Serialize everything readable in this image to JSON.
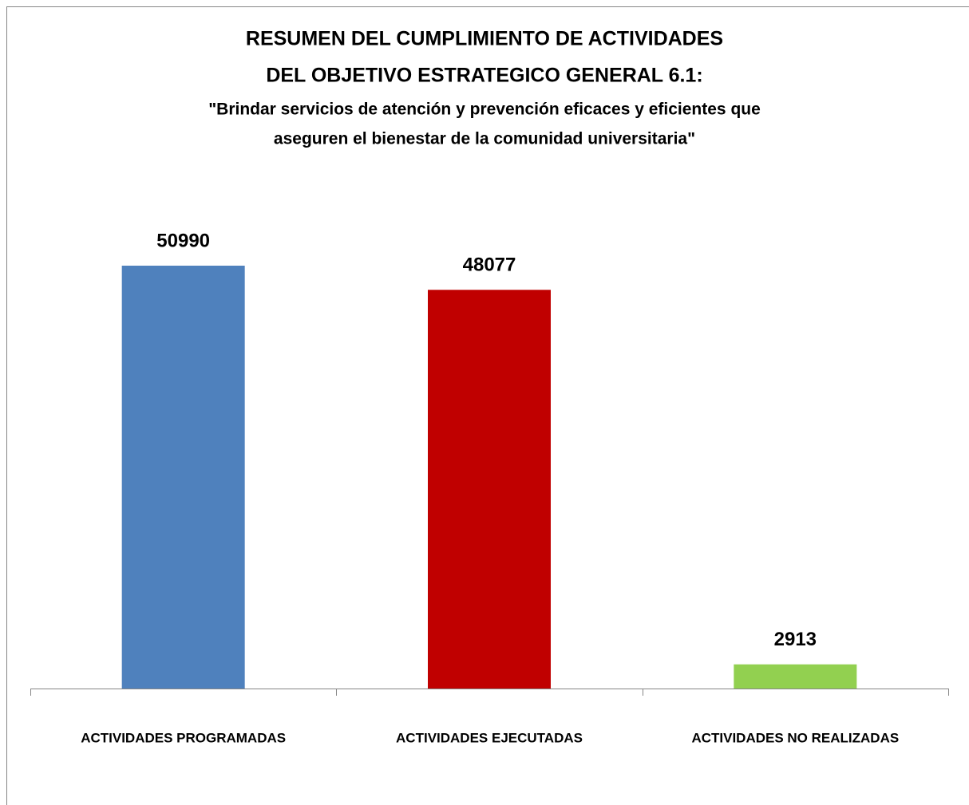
{
  "chart_data": {
    "type": "bar",
    "title": [
      "RESUMEN DEL CUMPLIMIENTO DE ACTIVIDADES",
      "DEL OBJETIVO ESTRATEGICO GENERAL 6.1:"
    ],
    "subtitle": [
      "\"Brindar servicios de atención y prevención eficaces y eficientes que",
      "aseguren el bienestar de la comunidad universitaria\""
    ],
    "categories": [
      "ACTIVIDADES PROGRAMADAS",
      "ACTIVIDADES EJECUTADAS",
      "ACTIVIDADES NO REALIZADAS"
    ],
    "values": [
      50990,
      48077,
      2913
    ],
    "colors": [
      "#4f81bd",
      "#c00000",
      "#92d050"
    ]
  }
}
